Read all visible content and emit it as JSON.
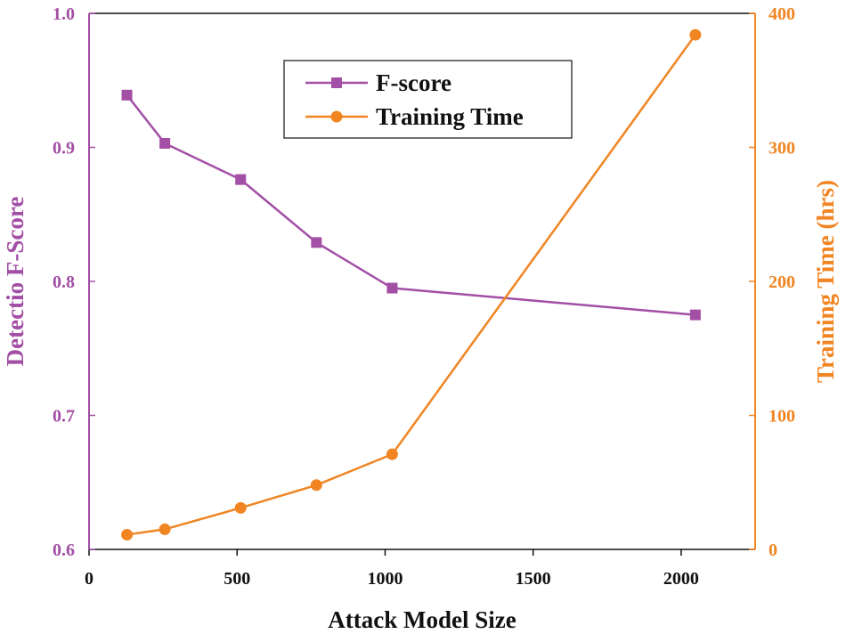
{
  "chart_data": {
    "type": "line",
    "title": "",
    "xlabel": "Attack Model Size",
    "ylabel_left": "Detectio F-Score",
    "ylabel_right": "Training Time (hrs)",
    "xlim": [
      0,
      2250
    ],
    "x_ticks": [
      0,
      500,
      1000,
      1500,
      2000
    ],
    "x_tick_labels": [
      "0",
      "500",
      "1000",
      "1500",
      "2000"
    ],
    "ylim_left": [
      0.6,
      1.0
    ],
    "y_ticks_left": [
      0.6,
      0.7,
      0.8,
      0.9,
      1.0
    ],
    "y_tick_labels_left": [
      "0.6",
      "0.7",
      "0.8",
      "0.9",
      "1.0"
    ],
    "ylim_right": [
      0,
      400
    ],
    "y_ticks_right": [
      0,
      100,
      200,
      300,
      400
    ],
    "y_tick_labels_right": [
      "0",
      "100",
      "200",
      "300",
      "400"
    ],
    "grid": false,
    "legend_position": "top-center",
    "series": [
      {
        "name": "F-score",
        "axis": "left",
        "marker": "square",
        "color": "#a24fa5",
        "x": [
          128,
          256,
          512,
          768,
          1024,
          2048
        ],
        "values": [
          0.939,
          0.903,
          0.876,
          0.829,
          0.795,
          0.775
        ]
      },
      {
        "name": "Training Time",
        "axis": "right",
        "marker": "circle",
        "color": "#f08522",
        "x": [
          128,
          256,
          512,
          768,
          1024,
          2048
        ],
        "values": [
          11,
          15,
          31,
          48,
          71,
          384
        ]
      }
    ]
  }
}
